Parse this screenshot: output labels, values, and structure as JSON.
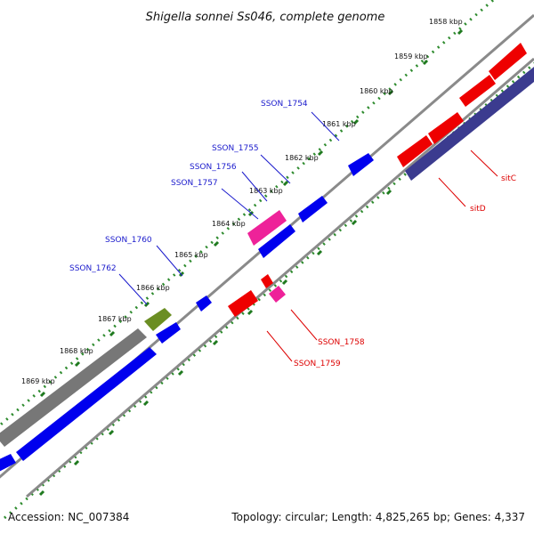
{
  "title": "Shigella sonnei Ss046, complete genome",
  "footer": {
    "accession": "Accession: NC_007384",
    "summary": "Topology: circular; Length: 4,825,265 bp; Genes: 4,337"
  },
  "colors": {
    "plus_strand_cds": "#0000ee",
    "minus_strand_cds": "#ee0000",
    "plus_label": "#0000dd",
    "minus_label": "#dd0000",
    "pink_gene": "#ee2299",
    "olive_gene": "#6b8e23",
    "gray_segment": "#777777",
    "backbone": "#888888",
    "dark_blue": "#3b3b8f",
    "tick_green": "#228b22"
  },
  "ticks": [
    {
      "label": "1858 kbp"
    },
    {
      "label": "1859 kbp"
    },
    {
      "label": "1860 kbp"
    },
    {
      "label": "1861 kbp"
    },
    {
      "label": "1862 kbp"
    },
    {
      "label": "1863 kbp"
    },
    {
      "label": "1864 kbp"
    },
    {
      "label": "1865 kbp"
    },
    {
      "label": "1866 kbp"
    },
    {
      "label": "1867 kbp"
    },
    {
      "label": "1868 kbp"
    },
    {
      "label": "1869 kbp"
    }
  ],
  "gene_labels": [
    {
      "text": "SSON_1754",
      "strand": "plus"
    },
    {
      "text": "SSON_1755",
      "strand": "plus"
    },
    {
      "text": "SSON_1756",
      "strand": "plus"
    },
    {
      "text": "SSON_1757",
      "strand": "plus"
    },
    {
      "text": "SSON_1760",
      "strand": "plus"
    },
    {
      "text": "SSON_1762",
      "strand": "plus"
    },
    {
      "text": "sitC",
      "strand": "minus"
    },
    {
      "text": "sitD",
      "strand": "minus"
    },
    {
      "text": "SSON_1758",
      "strand": "minus"
    },
    {
      "text": "SSON_1759",
      "strand": "minus"
    }
  ]
}
